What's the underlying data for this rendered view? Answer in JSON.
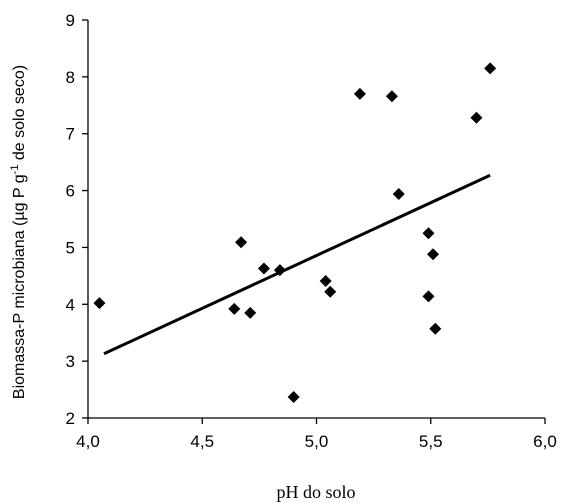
{
  "chart_data": {
    "type": "scatter",
    "xlabel": "pH do solo",
    "ylabel_parts": [
      "Biomassa-P microbiana (µg P g",
      "-1",
      " de solo seco)"
    ],
    "xlim": [
      4.0,
      6.0
    ],
    "ylim": [
      2,
      9
    ],
    "x_ticks": [
      4.0,
      4.5,
      5.0,
      5.5,
      6.0
    ],
    "x_tick_labels": [
      "4,0",
      "4,5",
      "5,0",
      "5,5",
      "6,0"
    ],
    "y_ticks": [
      2,
      3,
      4,
      5,
      6,
      7,
      8,
      9
    ],
    "y_tick_labels": [
      "2",
      "3",
      "4",
      "5",
      "6",
      "7",
      "8",
      "9"
    ],
    "grid": false,
    "legend": "none",
    "marker": "diamond",
    "marker_color": "#000000",
    "points": [
      {
        "x": 4.05,
        "y": 4.02
      },
      {
        "x": 4.64,
        "y": 3.92
      },
      {
        "x": 4.67,
        "y": 5.09
      },
      {
        "x": 4.71,
        "y": 3.85
      },
      {
        "x": 4.77,
        "y": 4.63
      },
      {
        "x": 4.84,
        "y": 4.6
      },
      {
        "x": 4.9,
        "y": 2.37
      },
      {
        "x": 5.04,
        "y": 4.41
      },
      {
        "x": 5.06,
        "y": 4.22
      },
      {
        "x": 5.19,
        "y": 7.7
      },
      {
        "x": 5.33,
        "y": 7.66
      },
      {
        "x": 5.36,
        "y": 5.94
      },
      {
        "x": 5.49,
        "y": 5.25
      },
      {
        "x": 5.49,
        "y": 4.14
      },
      {
        "x": 5.51,
        "y": 4.88
      },
      {
        "x": 5.52,
        "y": 3.57
      },
      {
        "x": 5.7,
        "y": 7.28
      },
      {
        "x": 5.76,
        "y": 8.15
      }
    ],
    "trendline": {
      "type": "linear",
      "x": [
        4.07,
        5.76
      ],
      "y": [
        3.13,
        6.27
      ]
    }
  }
}
